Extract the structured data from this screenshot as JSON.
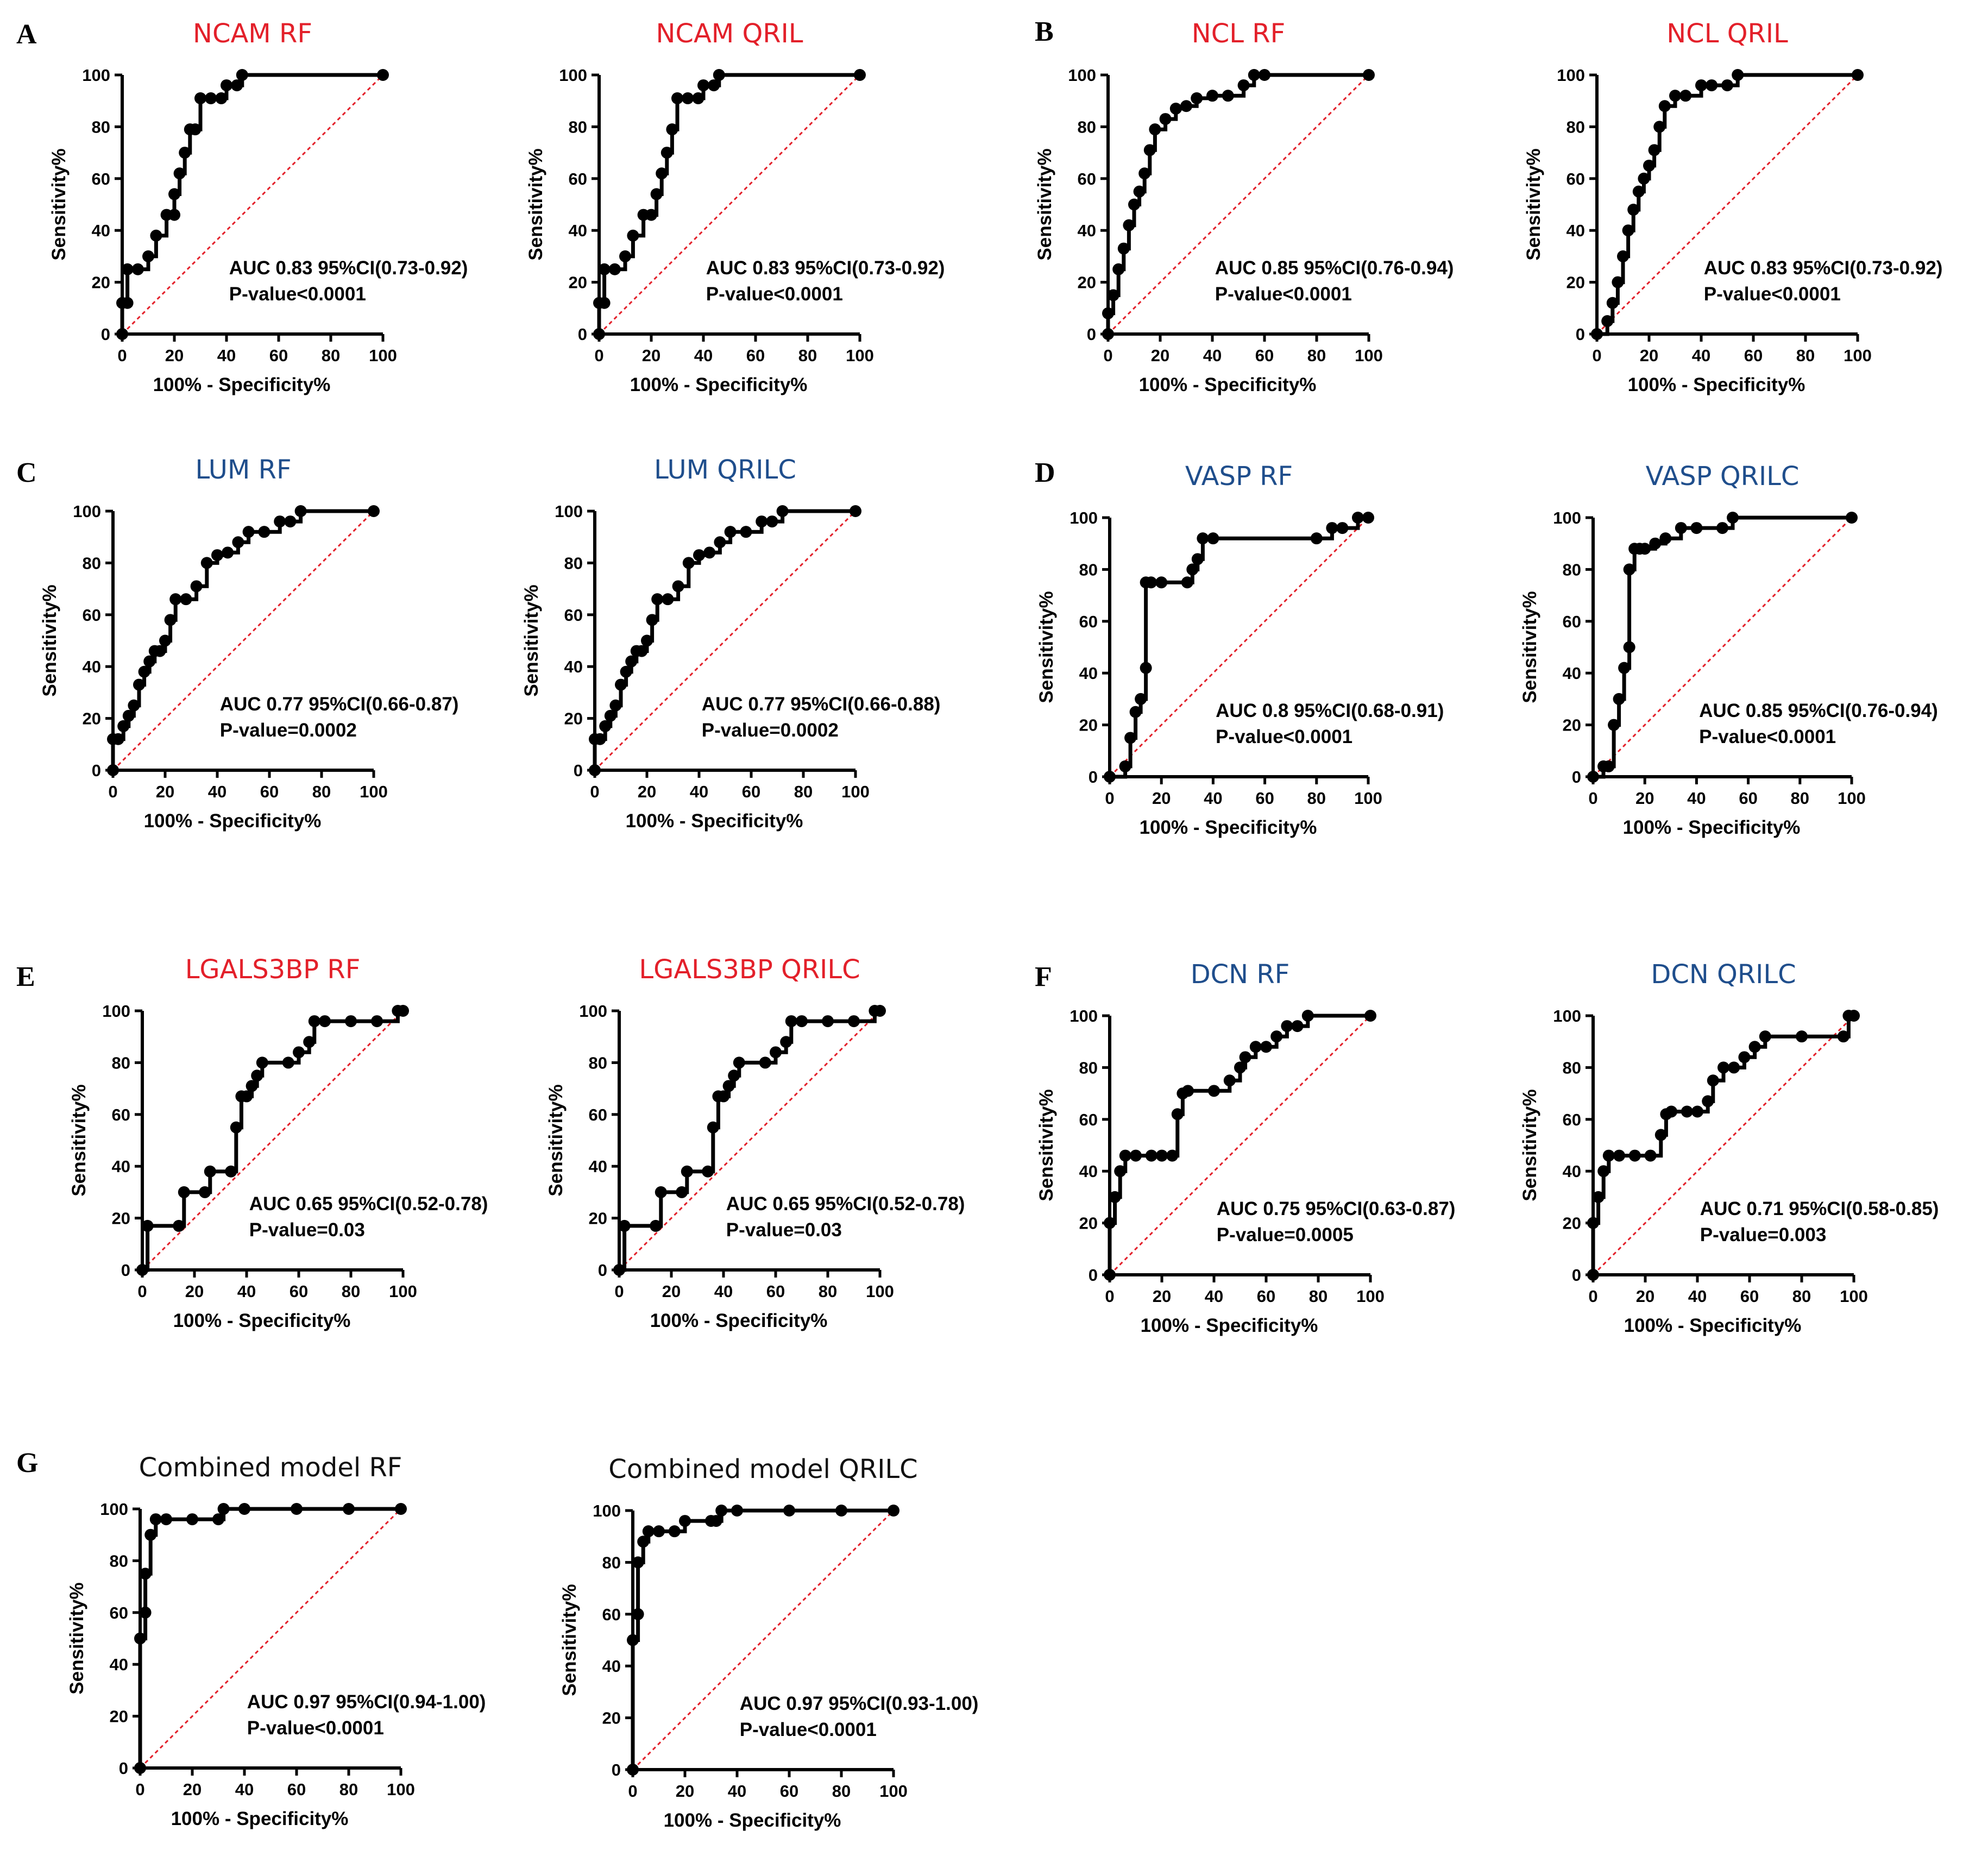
{
  "figure": {
    "xlabel": "100% - Specificity%",
    "ylabel": "Sensitivity%",
    "ticks": [
      "0",
      "20",
      "40",
      "60",
      "80",
      "100"
    ],
    "colors": {
      "red_title": "#e3202a",
      "blue_title": "#1f4e8c",
      "black_title": "#111111",
      "curve": "#000000",
      "reference": "#e3202a"
    }
  },
  "panels": [
    {
      "letter": "A"
    },
    {
      "letter": "B"
    },
    {
      "letter": "C"
    },
    {
      "letter": "D"
    },
    {
      "letter": "E"
    },
    {
      "letter": "F"
    },
    {
      "letter": "G"
    }
  ],
  "chart_data": [
    {
      "type": "line",
      "title": "NCAM RF",
      "title_color": "red",
      "xlabel": "100% - Specificity%",
      "ylabel": "Sensitivity%",
      "xlim": [
        0,
        100
      ],
      "ylim": [
        0,
        100
      ],
      "auc_text": "AUC 0.83 95%CI(0.73-0.92)",
      "p_text": "P-value<0.0001",
      "x": [
        0,
        0,
        2,
        2,
        6,
        10,
        13,
        17,
        20,
        20,
        22,
        24,
        26,
        28,
        30,
        34,
        38,
        40,
        44,
        46,
        100
      ],
      "y": [
        0,
        12,
        12,
        25,
        25,
        30,
        38,
        46,
        46,
        54,
        62,
        70,
        79,
        79,
        91,
        91,
        91,
        96,
        96,
        100,
        100
      ]
    },
    {
      "type": "line",
      "title": "NCAM QRIL",
      "title_color": "red",
      "xlabel": "100% - Specificity%",
      "ylabel": "Sensitivity%",
      "xlim": [
        0,
        100
      ],
      "ylim": [
        0,
        100
      ],
      "auc_text": "AUC 0.83 95%CI(0.73-0.92)",
      "p_text": "P-value<0.0001",
      "x": [
        0,
        0,
        2,
        2,
        6,
        10,
        13,
        17,
        20,
        22,
        24,
        26,
        28,
        30,
        34,
        38,
        40,
        44,
        46,
        100
      ],
      "y": [
        0,
        12,
        12,
        25,
        25,
        30,
        38,
        46,
        46,
        54,
        62,
        70,
        79,
        91,
        91,
        91,
        96,
        96,
        100,
        100
      ]
    },
    {
      "type": "line",
      "title": "NCL RF",
      "title_color": "red",
      "xlabel": "100% - Specificity%",
      "ylabel": "Sensitivity%",
      "xlim": [
        0,
        100
      ],
      "ylim": [
        0,
        100
      ],
      "auc_text": "AUC 0.85 95%CI(0.76-0.94)",
      "p_text": "P-value<0.0001",
      "x": [
        0,
        0,
        2,
        4,
        6,
        8,
        10,
        12,
        14,
        16,
        18,
        22,
        26,
        30,
        34,
        40,
        46,
        52,
        56,
        60,
        100
      ],
      "y": [
        0,
        8,
        15,
        25,
        33,
        42,
        50,
        55,
        62,
        71,
        79,
        83,
        87,
        88,
        91,
        92,
        92,
        96,
        100,
        100,
        100
      ]
    },
    {
      "type": "line",
      "title": "NCL QRIL",
      "title_color": "red",
      "xlabel": "100% - Specificity%",
      "ylabel": "Sensitivity%",
      "xlim": [
        0,
        100
      ],
      "ylim": [
        0,
        100
      ],
      "auc_text": "AUC 0.83 95%CI(0.73-0.92)",
      "p_text": "P-value<0.0001",
      "x": [
        0,
        4,
        6,
        8,
        10,
        12,
        14,
        16,
        18,
        20,
        22,
        24,
        26,
        30,
        34,
        40,
        44,
        50,
        54,
        100
      ],
      "y": [
        0,
        5,
        12,
        20,
        30,
        40,
        48,
        55,
        60,
        65,
        71,
        80,
        88,
        92,
        92,
        96,
        96,
        96,
        100,
        100
      ]
    },
    {
      "type": "line",
      "title": "LUM RF",
      "title_color": "blue",
      "xlabel": "100% - Specificity%",
      "ylabel": "Sensitivity%",
      "xlim": [
        0,
        100
      ],
      "ylim": [
        0,
        100
      ],
      "auc_text": "AUC 0.77 95%CI(0.66-0.87)",
      "p_text": "P-value=0.0002",
      "x": [
        0,
        0,
        2,
        4,
        6,
        8,
        10,
        12,
        14,
        16,
        18,
        20,
        22,
        24,
        28,
        32,
        36,
        40,
        44,
        48,
        52,
        58,
        64,
        68,
        72,
        100
      ],
      "y": [
        0,
        12,
        12,
        17,
        21,
        25,
        33,
        38,
        42,
        46,
        46,
        50,
        58,
        66,
        66,
        71,
        80,
        83,
        84,
        88,
        92,
        92,
        96,
        96,
        100,
        100
      ]
    },
    {
      "type": "line",
      "title": "LUM QRILC",
      "title_color": "blue",
      "xlabel": "100% - Specificity%",
      "ylabel": "Sensitivity%",
      "xlim": [
        0,
        100
      ],
      "ylim": [
        0,
        100
      ],
      "auc_text": "AUC 0.77 95%CI(0.66-0.88)",
      "p_text": "P-value=0.0002",
      "x": [
        0,
        0,
        2,
        4,
        6,
        8,
        10,
        12,
        14,
        16,
        18,
        20,
        22,
        24,
        28,
        32,
        36,
        40,
        44,
        48,
        52,
        58,
        64,
        68,
        72,
        100
      ],
      "y": [
        0,
        12,
        12,
        17,
        21,
        25,
        33,
        38,
        42,
        46,
        46,
        50,
        58,
        66,
        66,
        71,
        80,
        83,
        84,
        88,
        92,
        92,
        96,
        96,
        100,
        100
      ]
    },
    {
      "type": "line",
      "title": "VASP RF",
      "title_color": "blue",
      "xlabel": "100% - Specificity%",
      "ylabel": "Sensitivity%",
      "xlim": [
        0,
        100
      ],
      "ylim": [
        0,
        100
      ],
      "auc_text": "AUC 0.8 95%CI(0.68-0.91)",
      "p_text": "P-value<0.0001",
      "x": [
        0,
        6,
        8,
        10,
        12,
        14,
        14,
        16,
        20,
        30,
        32,
        34,
        36,
        40,
        80,
        86,
        90,
        96,
        100
      ],
      "y": [
        0,
        4,
        15,
        25,
        30,
        42,
        75,
        75,
        75,
        75,
        80,
        84,
        92,
        92,
        92,
        96,
        96,
        100,
        100
      ]
    },
    {
      "type": "line",
      "title": "VASP QRILC",
      "title_color": "blue",
      "xlabel": "100% - Specificity%",
      "ylabel": "Sensitivity%",
      "xlim": [
        0,
        100
      ],
      "ylim": [
        0,
        100
      ],
      "auc_text": "AUC 0.85 95%CI(0.76-0.94)",
      "p_text": "P-value<0.0001",
      "x": [
        0,
        4,
        6,
        8,
        10,
        12,
        14,
        14,
        16,
        18,
        20,
        24,
        28,
        34,
        40,
        50,
        54,
        100
      ],
      "y": [
        0,
        4,
        4,
        20,
        30,
        42,
        50,
        80,
        88,
        88,
        88,
        90,
        92,
        96,
        96,
        96,
        100,
        100
      ]
    },
    {
      "type": "line",
      "title": "LGALS3BP RF",
      "title_color": "red",
      "xlabel": "100% - Specificity%",
      "ylabel": "Sensitivity%",
      "xlim": [
        0,
        100
      ],
      "ylim": [
        0,
        100
      ],
      "auc_text": "AUC 0.65 95%CI(0.52-0.78)",
      "p_text": "P-value=0.03",
      "x": [
        0,
        2,
        14,
        16,
        24,
        26,
        34,
        36,
        38,
        40,
        42,
        44,
        46,
        56,
        60,
        64,
        66,
        70,
        80,
        90,
        98,
        100
      ],
      "y": [
        0,
        17,
        17,
        30,
        30,
        38,
        38,
        55,
        67,
        67,
        71,
        75,
        80,
        80,
        84,
        88,
        96,
        96,
        96,
        96,
        100,
        100
      ]
    },
    {
      "type": "line",
      "title": "LGALS3BP QRILC",
      "title_color": "red",
      "xlabel": "100% - Specificity%",
      "ylabel": "Sensitivity%",
      "xlim": [
        0,
        100
      ],
      "ylim": [
        0,
        100
      ],
      "auc_text": "AUC 0.65 95%CI(0.52-0.78)",
      "p_text": "P-value=0.03",
      "x": [
        0,
        2,
        14,
        16,
        24,
        26,
        34,
        36,
        38,
        40,
        42,
        44,
        46,
        56,
        60,
        64,
        66,
        70,
        80,
        90,
        98,
        100
      ],
      "y": [
        0,
        17,
        17,
        30,
        30,
        38,
        38,
        55,
        67,
        67,
        71,
        75,
        80,
        80,
        84,
        88,
        96,
        96,
        96,
        96,
        100,
        100
      ]
    },
    {
      "type": "line",
      "title": "DCN RF",
      "title_color": "blue",
      "xlabel": "100% - Specificity%",
      "ylabel": "Sensitivity%",
      "xlim": [
        0,
        100
      ],
      "ylim": [
        0,
        100
      ],
      "auc_text": "AUC 0.75 95%CI(0.63-0.87)",
      "p_text": "P-value=0.0005",
      "x": [
        0,
        0,
        2,
        4,
        6,
        10,
        16,
        20,
        24,
        26,
        28,
        30,
        40,
        46,
        50,
        52,
        56,
        60,
        64,
        68,
        72,
        76,
        100
      ],
      "y": [
        0,
        20,
        30,
        40,
        46,
        46,
        46,
        46,
        46,
        62,
        70,
        71,
        71,
        75,
        80,
        84,
        88,
        88,
        92,
        96,
        96,
        100,
        100
      ]
    },
    {
      "type": "line",
      "title": "DCN QRILC",
      "title_color": "blue",
      "xlabel": "100% - Specificity%",
      "ylabel": "Sensitivity%",
      "xlim": [
        0,
        100
      ],
      "ylim": [
        0,
        100
      ],
      "auc_text": "AUC 0.71 95%CI(0.58-0.85)",
      "p_text": "P-value=0.003",
      "x": [
        0,
        0,
        2,
        4,
        6,
        10,
        16,
        22,
        26,
        28,
        30,
        36,
        40,
        44,
        46,
        50,
        54,
        58,
        62,
        66,
        80,
        96,
        98,
        100
      ],
      "y": [
        0,
        20,
        30,
        40,
        46,
        46,
        46,
        46,
        54,
        62,
        63,
        63,
        63,
        67,
        75,
        80,
        80,
        84,
        88,
        92,
        92,
        92,
        100,
        100
      ]
    },
    {
      "type": "line",
      "title": "Combined model RF",
      "title_color": "black",
      "xlabel": "100% - Specificity%",
      "ylabel": "Sensitivity%",
      "xlim": [
        0,
        100
      ],
      "ylim": [
        0,
        100
      ],
      "auc_text": "AUC 0.97 95%CI(0.94-1.00)",
      "p_text": "P-value<0.0001",
      "x": [
        0,
        0,
        2,
        2,
        4,
        6,
        10,
        20,
        30,
        32,
        40,
        60,
        80,
        100
      ],
      "y": [
        0,
        50,
        60,
        75,
        90,
        96,
        96,
        96,
        96,
        100,
        100,
        100,
        100,
        100
      ]
    },
    {
      "type": "line",
      "title": "Combined model QRILC",
      "title_color": "black",
      "xlabel": "100% - Specificity%",
      "ylabel": "Sensitivity%",
      "xlim": [
        0,
        100
      ],
      "ylim": [
        0,
        100
      ],
      "auc_text": "AUC 0.97 95%CI(0.93-1.00)",
      "p_text": "P-value<0.0001",
      "x": [
        0,
        0,
        2,
        2,
        4,
        6,
        10,
        16,
        20,
        30,
        32,
        34,
        40,
        60,
        80,
        100
      ],
      "y": [
        0,
        50,
        60,
        80,
        88,
        92,
        92,
        92,
        96,
        96,
        96,
        100,
        100,
        100,
        100,
        100
      ]
    }
  ]
}
